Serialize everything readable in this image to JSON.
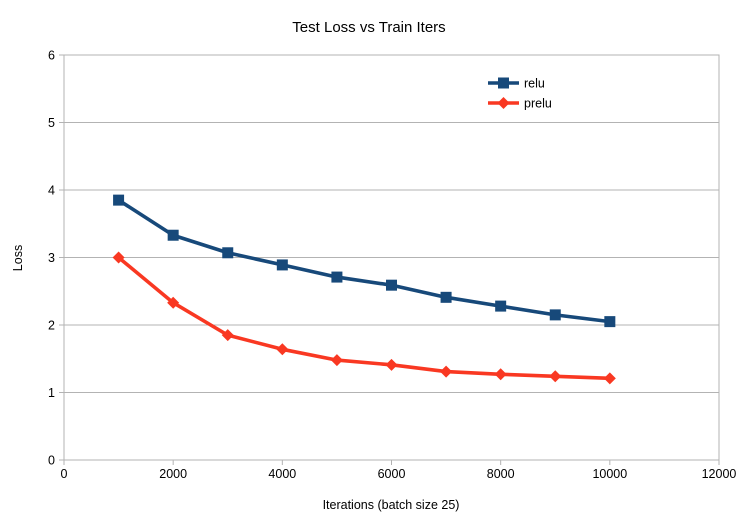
{
  "chart_data": {
    "type": "line",
    "title": "Test Loss vs Train Iters",
    "xlabel": "Iterations (batch size 25)",
    "ylabel": "Loss",
    "xlim": [
      0,
      12000
    ],
    "ylim": [
      0,
      6
    ],
    "x_ticks": [
      0,
      2000,
      4000,
      6000,
      8000,
      10000,
      12000
    ],
    "y_ticks": [
      0,
      1,
      2,
      3,
      4,
      5,
      6
    ],
    "grid": "horizontal-only",
    "grid_color": "#b3b3b3",
    "axis_color": "#b3b3b3",
    "text_color": "#000000",
    "background_color": "#ffffff",
    "legend_position": "inside-upper-right",
    "x": [
      1000,
      2000,
      3000,
      4000,
      5000,
      6000,
      7000,
      8000,
      9000,
      10000
    ],
    "series": [
      {
        "name": "relu",
        "color": "#17497a",
        "marker": "square",
        "values": [
          3.85,
          3.33,
          3.07,
          2.89,
          2.71,
          2.59,
          2.41,
          2.28,
          2.15,
          2.05
        ]
      },
      {
        "name": "prelu",
        "color": "#f93822",
        "marker": "diamond",
        "values": [
          3.0,
          2.33,
          1.85,
          1.64,
          1.48,
          1.41,
          1.31,
          1.27,
          1.24,
          1.21
        ]
      }
    ]
  }
}
